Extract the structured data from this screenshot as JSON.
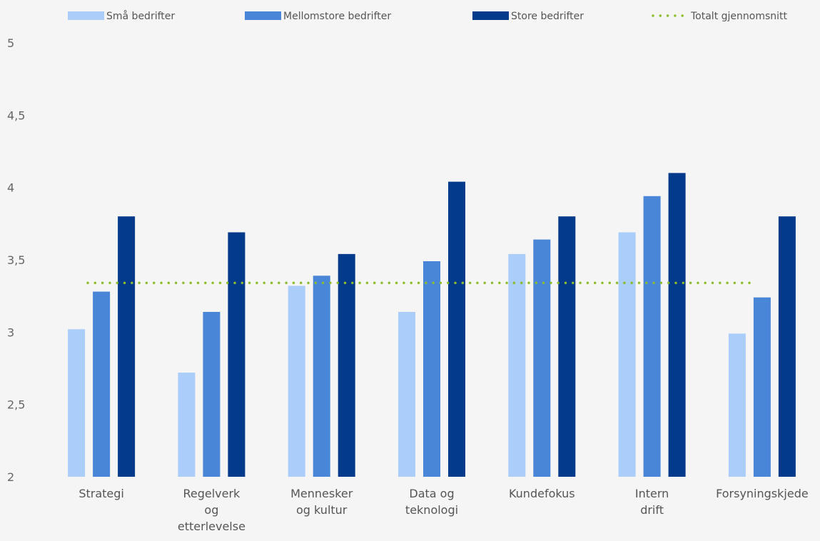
{
  "chart_data": {
    "type": "bar",
    "categories": [
      [
        "Strategi"
      ],
      [
        "Regelverk",
        "og",
        "etterlevelse"
      ],
      [
        "Mennesker",
        "og kultur"
      ],
      [
        "Data og",
        "teknologi"
      ],
      [
        "Kundefokus"
      ],
      [
        "Intern",
        "drift"
      ],
      [
        "Forsyningskjede"
      ]
    ],
    "series": [
      {
        "name": "Små bedrifter",
        "color": "#abcdfa",
        "values": [
          3.02,
          2.72,
          3.32,
          3.14,
          3.54,
          3.69,
          2.99
        ]
      },
      {
        "name": "Mellomstore bedrifter",
        "color": "#4a86d8",
        "values": [
          3.28,
          3.14,
          3.39,
          3.49,
          3.64,
          3.94,
          3.24
        ]
      },
      {
        "name": "Store bedrifter",
        "color": "#033a8c",
        "values": [
          3.8,
          3.69,
          3.54,
          4.04,
          3.8,
          4.1,
          3.8
        ]
      }
    ],
    "average": {
      "name": "Totalt gjennomsnitt",
      "color": "#8cbd2e",
      "value": 3.34
    },
    "ylim": [
      2,
      5
    ],
    "yticks": [
      "2",
      "2,5",
      "3",
      "3,5",
      "4",
      "4,5",
      "5"
    ],
    "ytick_values": [
      2,
      2.5,
      3,
      3.5,
      4,
      4.5,
      5
    ],
    "grid": false,
    "legend_position": "top"
  }
}
